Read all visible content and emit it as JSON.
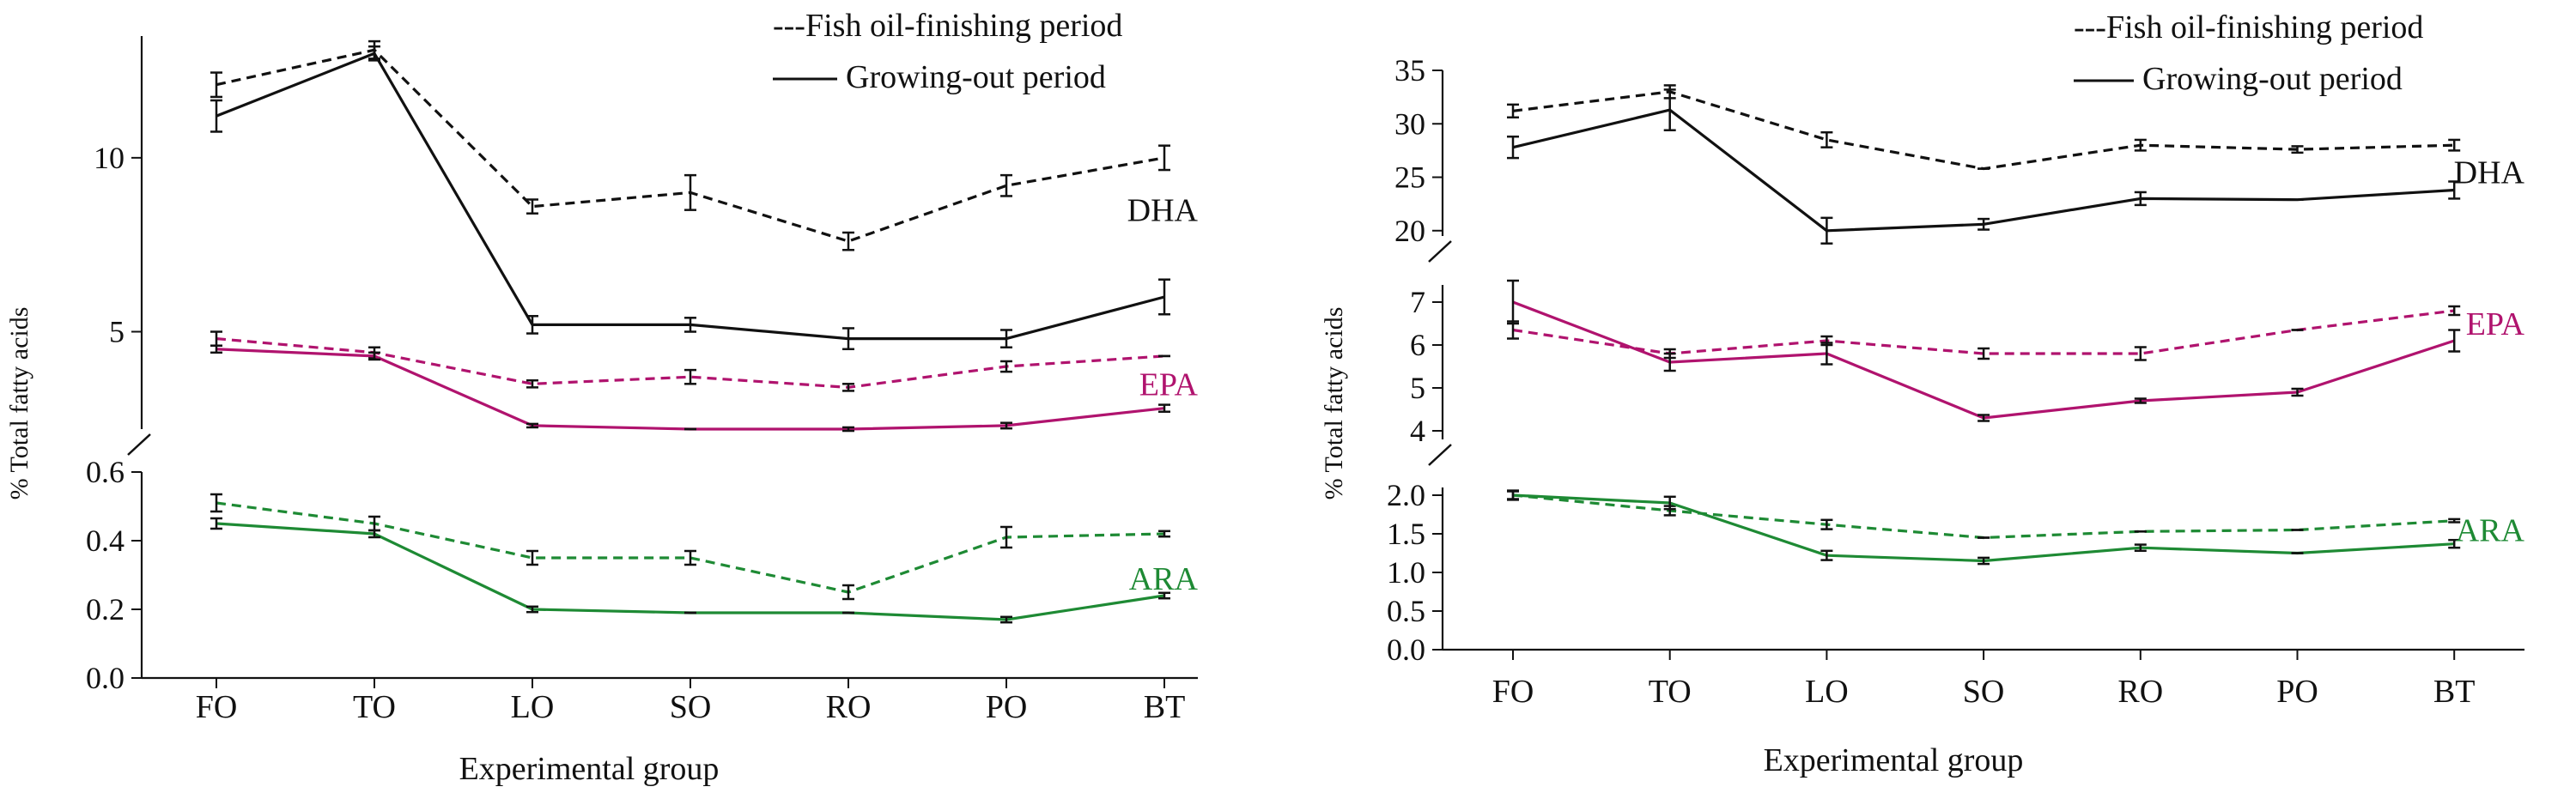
{
  "colors": {
    "axis": "#111111",
    "DHA": "#111111",
    "EPA": "#b0136e",
    "ARA": "#1e8a34"
  },
  "chart_data": [
    {
      "type": "line",
      "title": "",
      "xlabel": "Experimental group",
      "ylabel": "% Total fatty acids",
      "categories": [
        "FO",
        "TO",
        "LO",
        "SO",
        "RO",
        "PO",
        "BT"
      ],
      "legend": {
        "position": "top-right",
        "entries": [
          {
            "style": "dashed",
            "label": "---Fish oil-finishing period"
          },
          {
            "style": "solid",
            "label": "Growing-out period"
          }
        ]
      },
      "panels": [
        {
          "name": "DHA-EPA",
          "ylim": [
            2.2,
            13.5
          ],
          "ticks": [
            5,
            10
          ],
          "tick_labels": [
            "5",
            "10"
          ],
          "break_below": true,
          "series": [
            {
              "name": "DHA",
              "period": "fish-oil-finishing",
              "style": "dashed",
              "values": [
                12.1,
                13.1,
                8.6,
                9.0,
                7.6,
                9.2,
                10.0
              ],
              "errors": [
                0.35,
                0.25,
                0.2,
                0.5,
                0.25,
                0.3,
                0.35
              ]
            },
            {
              "name": "DHA",
              "period": "growing-out",
              "style": "solid",
              "values": [
                11.2,
                13.0,
                5.2,
                5.2,
                4.8,
                4.8,
                6.0
              ],
              "errors": [
                0.45,
                0.2,
                0.25,
                0.2,
                0.3,
                0.25,
                0.5
              ]
            },
            {
              "name": "EPA",
              "period": "fish-oil-finishing",
              "style": "dashed",
              "values": [
                4.8,
                4.4,
                3.5,
                3.7,
                3.4,
                4.0,
                4.3
              ],
              "errors": [
                0.2,
                0.15,
                0.1,
                0.2,
                0.1,
                0.15,
                0.0
              ]
            },
            {
              "name": "EPA",
              "period": "growing-out",
              "style": "solid",
              "values": [
                4.5,
                4.3,
                2.3,
                2.2,
                2.2,
                2.3,
                2.8
              ],
              "errors": [
                0.1,
                0.1,
                0.05,
                0.0,
                0.05,
                0.08,
                0.1
              ]
            }
          ],
          "labels": [
            {
              "series": "DHA",
              "text": "DHA",
              "value": 8.5
            },
            {
              "series": "EPA",
              "text": "EPA",
              "value": 3.5
            }
          ]
        },
        {
          "name": "ARA",
          "ylim": [
            0.0,
            0.6
          ],
          "ticks": [
            0.0,
            0.2,
            0.4,
            0.6
          ],
          "tick_labels": [
            "0.0",
            "0.2",
            "0.4",
            "0.6"
          ],
          "break_below": false,
          "series": [
            {
              "name": "ARA",
              "period": "fish-oil-finishing",
              "style": "dashed",
              "values": [
                0.51,
                0.45,
                0.35,
                0.35,
                0.25,
                0.41,
                0.42
              ],
              "errors": [
                0.025,
                0.02,
                0.02,
                0.02,
                0.02,
                0.03,
                0.008
              ]
            },
            {
              "name": "ARA",
              "period": "growing-out",
              "style": "solid",
              "values": [
                0.45,
                0.42,
                0.2,
                0.19,
                0.19,
                0.17,
                0.24
              ],
              "errors": [
                0.015,
                0.01,
                0.008,
                0.0,
                0.0,
                0.008,
                0.008
              ]
            }
          ],
          "labels": [
            {
              "series": "ARA",
              "text": "ARA",
              "value": 0.29
            }
          ]
        }
      ]
    },
    {
      "type": "line",
      "title": "",
      "xlabel": "Experimental group",
      "ylabel": "% Total fatty acids",
      "categories": [
        "FO",
        "TO",
        "LO",
        "SO",
        "RO",
        "PO",
        "BT"
      ],
      "legend": {
        "position": "top-right",
        "entries": [
          {
            "style": "dashed",
            "label": "---Fish oil-finishing period"
          },
          {
            "style": "solid",
            "label": "Growing-out period"
          }
        ]
      },
      "panels": [
        {
          "name": "DHA",
          "ylim": [
            19.5,
            35.0
          ],
          "ticks": [
            20,
            25,
            30,
            35
          ],
          "tick_labels": [
            "20",
            "25",
            "30",
            "35"
          ],
          "break_below": true,
          "series": [
            {
              "name": "DHA",
              "period": "fish-oil-finishing",
              "style": "dashed",
              "values": [
                31.2,
                33.0,
                28.5,
                25.8,
                28.0,
                27.6,
                28.0
              ],
              "errors": [
                0.6,
                0.6,
                0.7,
                0.0,
                0.5,
                0.3,
                0.5
              ]
            },
            {
              "name": "DHA",
              "period": "growing-out",
              "style": "solid",
              "values": [
                27.8,
                31.3,
                20.0,
                20.6,
                23.0,
                22.9,
                23.8
              ],
              "errors": [
                1.0,
                1.9,
                1.2,
                0.5,
                0.6,
                0.0,
                0.8
              ]
            }
          ],
          "labels": [
            {
              "series": "DHA",
              "text": "DHA",
              "value": 25.5
            }
          ]
        },
        {
          "name": "EPA",
          "ylim": [
            3.8,
            7.4
          ],
          "ticks": [
            4,
            5,
            6,
            7
          ],
          "tick_labels": [
            "4",
            "5",
            "6",
            "7"
          ],
          "break_below": true,
          "series": [
            {
              "name": "EPA",
              "period": "fish-oil-finishing",
              "style": "dashed",
              "values": [
                6.35,
                5.8,
                6.1,
                5.8,
                5.8,
                6.35,
                6.8
              ],
              "errors": [
                0.2,
                0.1,
                0.1,
                0.12,
                0.15,
                0.0,
                0.1
              ]
            },
            {
              "name": "EPA",
              "period": "growing-out",
              "style": "solid",
              "values": [
                7.0,
                5.6,
                5.8,
                4.3,
                4.7,
                4.9,
                6.1
              ],
              "errors": [
                0.5,
                0.2,
                0.25,
                0.07,
                0.05,
                0.08,
                0.25
              ]
            }
          ],
          "labels": [
            {
              "series": "EPA",
              "text": "EPA",
              "value": 6.5
            }
          ]
        },
        {
          "name": "ARA",
          "ylim": [
            0.0,
            2.1
          ],
          "ticks": [
            0.0,
            0.5,
            1.0,
            1.5,
            2.0
          ],
          "tick_labels": [
            "0.0",
            "0.5",
            "1.0",
            "1.5",
            "2.0"
          ],
          "break_below": false,
          "series": [
            {
              "name": "ARA",
              "period": "fish-oil-finishing",
              "style": "dashed",
              "values": [
                2.0,
                1.8,
                1.62,
                1.45,
                1.53,
                1.55,
                1.67
              ],
              "errors": [
                0.06,
                0.06,
                0.06,
                0.0,
                0.0,
                0.0,
                0.02
              ]
            },
            {
              "name": "ARA",
              "period": "growing-out",
              "style": "solid",
              "values": [
                2.0,
                1.9,
                1.22,
                1.15,
                1.32,
                1.25,
                1.37
              ],
              "errors": [
                0.05,
                0.08,
                0.06,
                0.04,
                0.04,
                0.0,
                0.05
              ]
            }
          ],
          "labels": [
            {
              "series": "ARA",
              "text": "ARA",
              "value": 1.55
            }
          ]
        }
      ]
    }
  ]
}
